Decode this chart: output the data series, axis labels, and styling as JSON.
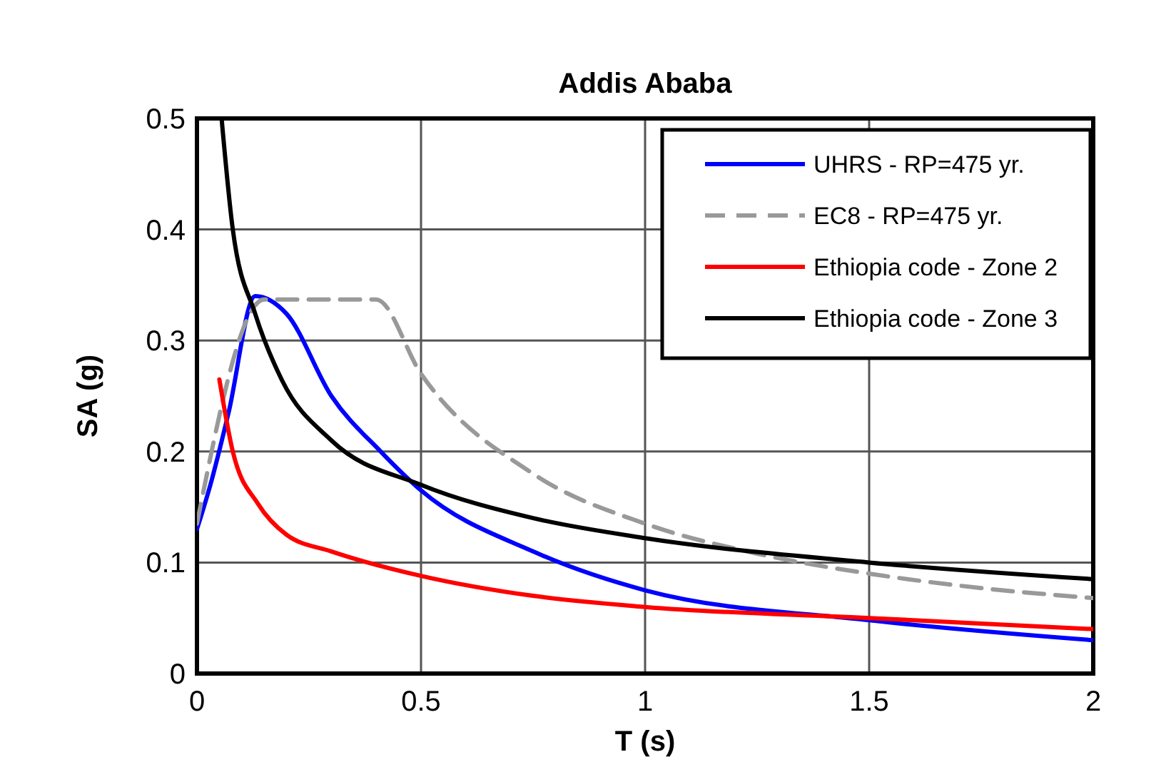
{
  "chart_data": {
    "type": "line",
    "title": "Addis Ababa",
    "xlabel": "T (s)",
    "ylabel": "SA (g)",
    "xlim": [
      0,
      2
    ],
    "ylim": [
      0,
      0.5
    ],
    "xticks": [
      0,
      0.5,
      1,
      1.5,
      2
    ],
    "yticks": [
      0,
      0.1,
      0.2,
      0.3,
      0.4,
      0.5
    ],
    "grid": true,
    "legend": "top right",
    "series": [
      {
        "name": "UHRS - RP=475 yr.",
        "color": "#0000ff",
        "x": [
          0,
          0.03,
          0.07,
          0.13,
          0.2,
          0.3,
          0.41,
          0.5,
          0.75,
          1,
          1.5,
          2
        ],
        "values": [
          0.13,
          0.17,
          0.234,
          0.34,
          0.324,
          0.25,
          0.2,
          0.165,
          0.11,
          0.075,
          0.048,
          0.03
        ]
      },
      {
        "name": "EC8 - RP=475 yr.",
        "color": "#999999",
        "line_style": "dashed",
        "x": [
          0,
          0.15,
          0.4,
          0.5,
          0.75,
          1,
          1.25,
          1.5,
          1.75,
          2
        ],
        "values": [
          0.135,
          0.337,
          0.337,
          0.27,
          0.18,
          0.135,
          0.108,
          0.09,
          0.077,
          0.068
        ]
      },
      {
        "name": "Ethiopia code - Zone 2",
        "color": "#ff0000",
        "x": [
          0.05,
          0.08,
          0.136,
          0.2,
          0.3,
          0.5,
          0.75,
          1,
          1.5,
          2
        ],
        "values": [
          0.265,
          0.2,
          0.153,
          0.125,
          0.11,
          0.088,
          0.07,
          0.06,
          0.05,
          0.04
        ]
      },
      {
        "name": "Ethiopia code - Zone 3",
        "color": "#000000",
        "x": [
          0.055,
          0.08,
          0.13,
          0.19,
          0.3,
          0.5,
          0.75,
          1,
          1.5,
          2
        ],
        "values": [
          0.5,
          0.4,
          0.324,
          0.264,
          0.21,
          0.17,
          0.14,
          0.122,
          0.1,
          0.085
        ]
      }
    ]
  }
}
